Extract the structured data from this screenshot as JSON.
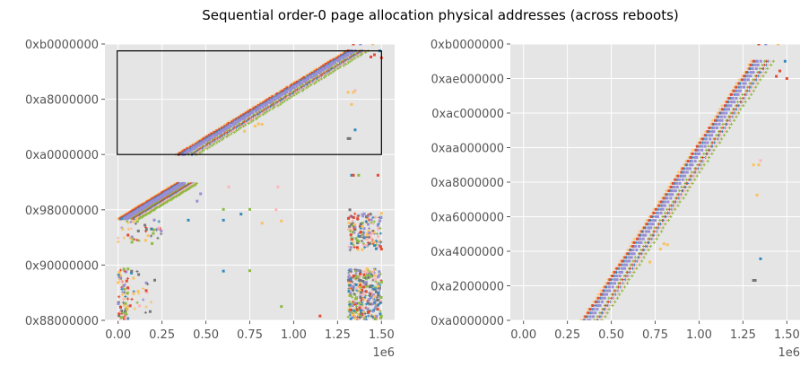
{
  "chart_data": {
    "type": "scatter",
    "title": "Sequential order-0 page allocation physical addresses (across reboots)",
    "palette": [
      "#FBC15E",
      "#E24A33",
      "#348ABD",
      "#988ED5",
      "#8EBA42",
      "#FFB5B8",
      "#777777"
    ],
    "background": "#E5E5E5",
    "grid": true,
    "legend": "none",
    "series_bands": [
      {
        "color_index": 0,
        "marker": "+",
        "x_shift": 0.0
      },
      {
        "color_index": 1,
        "marker": "s",
        "x_shift": 0.012
      },
      {
        "color_index": 2,
        "marker": "+",
        "x_shift": 0.022
      },
      {
        "color_index": 3,
        "marker": "s",
        "x_shift": 0.034
      },
      {
        "color_index": 3,
        "marker": "s",
        "x_shift": 0.05
      },
      {
        "color_index": 4,
        "marker": "+",
        "x_shift": 0.075
      },
      {
        "color_index": 1,
        "marker": "+",
        "x_shift": 0.085
      },
      {
        "color_index": 2,
        "marker": "+",
        "x_shift": 0.095
      },
      {
        "color_index": 5,
        "marker": "+",
        "x_shift": 0.105
      },
      {
        "color_index": 4,
        "marker": "+",
        "x_shift": 0.12
      }
    ],
    "band_segments": [
      {
        "x": [
          0.0,
          0.33
        ],
        "y": [
          "0x96b00000",
          "0x9bd00000"
        ]
      },
      {
        "x": [
          0.33,
          1.3
        ],
        "y": [
          "0xa0000000",
          "0xaf000000"
        ]
      }
    ],
    "clusters": [
      {
        "x": [
          0.0,
          0.06
        ],
        "y": [
          "0x88000000",
          "0x8f800000"
        ],
        "approx_points": 70
      },
      {
        "x": [
          0.06,
          0.21
        ],
        "y": [
          "0x89000000",
          "0x8f800000"
        ],
        "approx_points": 25
      },
      {
        "x": [
          0.0,
          0.25
        ],
        "y": [
          "0x93000000",
          "0x97000000"
        ],
        "approx_points": 45
      },
      {
        "x": [
          1.31,
          1.5
        ],
        "y": [
          "0x88000000",
          "0x8f800000"
        ],
        "approx_points": 320
      },
      {
        "x": [
          1.31,
          1.5
        ],
        "y": [
          "0x92000000",
          "0x97800000"
        ],
        "approx_points": 150
      }
    ],
    "points": [
      {
        "x": 0.6,
        "y": "0x98100000",
        "c": 4
      },
      {
        "x": 0.75,
        "y": "0x98100000",
        "c": 4
      },
      {
        "x": 0.7,
        "y": "0x97600000",
        "c": 2
      },
      {
        "x": 0.9,
        "y": "0x98000000",
        "c": 5
      },
      {
        "x": 0.63,
        "y": "0x9b500000",
        "c": 5
      },
      {
        "x": 0.91,
        "y": "0x9b500000",
        "c": 5
      },
      {
        "x": 0.47,
        "y": "0x9a500000",
        "c": 3
      },
      {
        "x": 0.45,
        "y": "0x99400000",
        "c": 3
      },
      {
        "x": 0.82,
        "y": "0x96100000",
        "c": 0
      },
      {
        "x": 0.93,
        "y": "0x96600000",
        "c": 0
      },
      {
        "x": 1.15,
        "y": "0x88a00000",
        "c": 1
      },
      {
        "x": 0.93,
        "y": "0x8a000000",
        "c": 4
      },
      {
        "x": 0.6,
        "y": "0x8f200000",
        "c": 2
      },
      {
        "x": 0.75,
        "y": "0x8f300000",
        "c": 4
      },
      {
        "x": 0.4,
        "y": "0x96800000",
        "c": 2
      },
      {
        "x": 0.6,
        "y": "0x96800000",
        "c": 2
      },
      {
        "x": 1.31,
        "y": "0xa9000000",
        "c": 0
      },
      {
        "x": 1.35,
        "y": "0xa9400000",
        "c": 5
      },
      {
        "x": 1.34,
        "y": "0xa9000000",
        "c": 0
      },
      {
        "x": 1.33,
        "y": "0xa7400000",
        "c": 0
      },
      {
        "x": 1.35,
        "y": "0xa3900000",
        "c": 2
      },
      {
        "x": 1.31,
        "y": "0xa2500000",
        "c": 6
      },
      {
        "x": 1.32,
        "y": "0xa2500000",
        "c": 6
      },
      {
        "x": 1.34,
        "y": "0xb0000000",
        "c": 1
      },
      {
        "x": 1.38,
        "y": "0xb0000000",
        "c": 3
      },
      {
        "x": 1.45,
        "y": "0xb0000000",
        "c": 0
      },
      {
        "x": 1.5,
        "y": "0xae000000",
        "c": 1
      },
      {
        "x": 1.49,
        "y": "0xaf000000",
        "c": 2
      },
      {
        "x": 1.46,
        "y": "0xae700000",
        "c": 1
      },
      {
        "x": 1.44,
        "y": "0xae200000",
        "c": 1
      },
      {
        "x": 0.8,
        "y": "0xa4700000",
        "c": 0
      },
      {
        "x": 0.82,
        "y": "0xa4600000",
        "c": 0
      },
      {
        "x": 0.72,
        "y": "0xa3600000",
        "c": 0
      },
      {
        "x": 0.78,
        "y": "0xa4200000",
        "c": 0
      },
      {
        "x": 1.33,
        "y": "0x9d000000",
        "c": 2
      },
      {
        "x": 1.34,
        "y": "0x9d000000",
        "c": 1
      },
      {
        "x": 1.37,
        "y": "0x9d000000",
        "c": 4
      },
      {
        "x": 1.48,
        "y": "0x9d000000",
        "c": 1
      },
      {
        "x": 1.32,
        "y": "0x98000000",
        "c": 6
      },
      {
        "x": 1.5,
        "y": "0x92500000",
        "c": 1
      }
    ],
    "panels": [
      {
        "xlim": [
          -0.075,
          1.575
        ],
        "ylim": [
          "0x88000000",
          "0xb0000000"
        ],
        "x_ticks": [
          0,
          0.25,
          0.5,
          0.75,
          1.0,
          1.25,
          1.5
        ],
        "x_tick_labels": [
          "0.00",
          "0.25",
          "0.50",
          "0.75",
          "1.00",
          "1.25",
          "1.50"
        ],
        "x_offset_label": "1e6",
        "y_ticks": [
          "0x88000000",
          "0x90000000",
          "0x98000000",
          "0xa0000000",
          "0xa8000000",
          "0xb0000000"
        ],
        "y_tick_labels": [
          "0x88000000",
          "0x90000000",
          "0x98000000",
          "0xa0000000",
          "0xa8000000",
          "0xb0000000"
        ],
        "zoom_box": {
          "x": [
            -0.005,
            1.5
          ],
          "y": [
            "0xa0000000",
            "0xaf000000"
          ]
        }
      },
      {
        "xlim": [
          -0.075,
          1.575
        ],
        "ylim": [
          "0xa0000000",
          "0xb0000000"
        ],
        "x_ticks": [
          0,
          0.25,
          0.5,
          0.75,
          1.0,
          1.25,
          1.5
        ],
        "x_tick_labels": [
          "0.00",
          "0.25",
          "0.50",
          "0.75",
          "1.00",
          "1.25",
          "1.50"
        ],
        "x_offset_label": "1e6",
        "y_ticks": [
          "0xa0000000",
          "0xa2000000",
          "0xa4000000",
          "0xa6000000",
          "0xa8000000",
          "0xaa000000",
          "0xac000000",
          "0xae000000",
          "0xb0000000"
        ],
        "y_tick_labels": [
          "0xa0000000",
          "0xa2000000",
          "0xa4000000",
          "0xa6000000",
          "0xa8000000",
          "0xaa000000",
          "0xac000000",
          "0xae000000",
          "0xb0000000"
        ]
      }
    ]
  }
}
